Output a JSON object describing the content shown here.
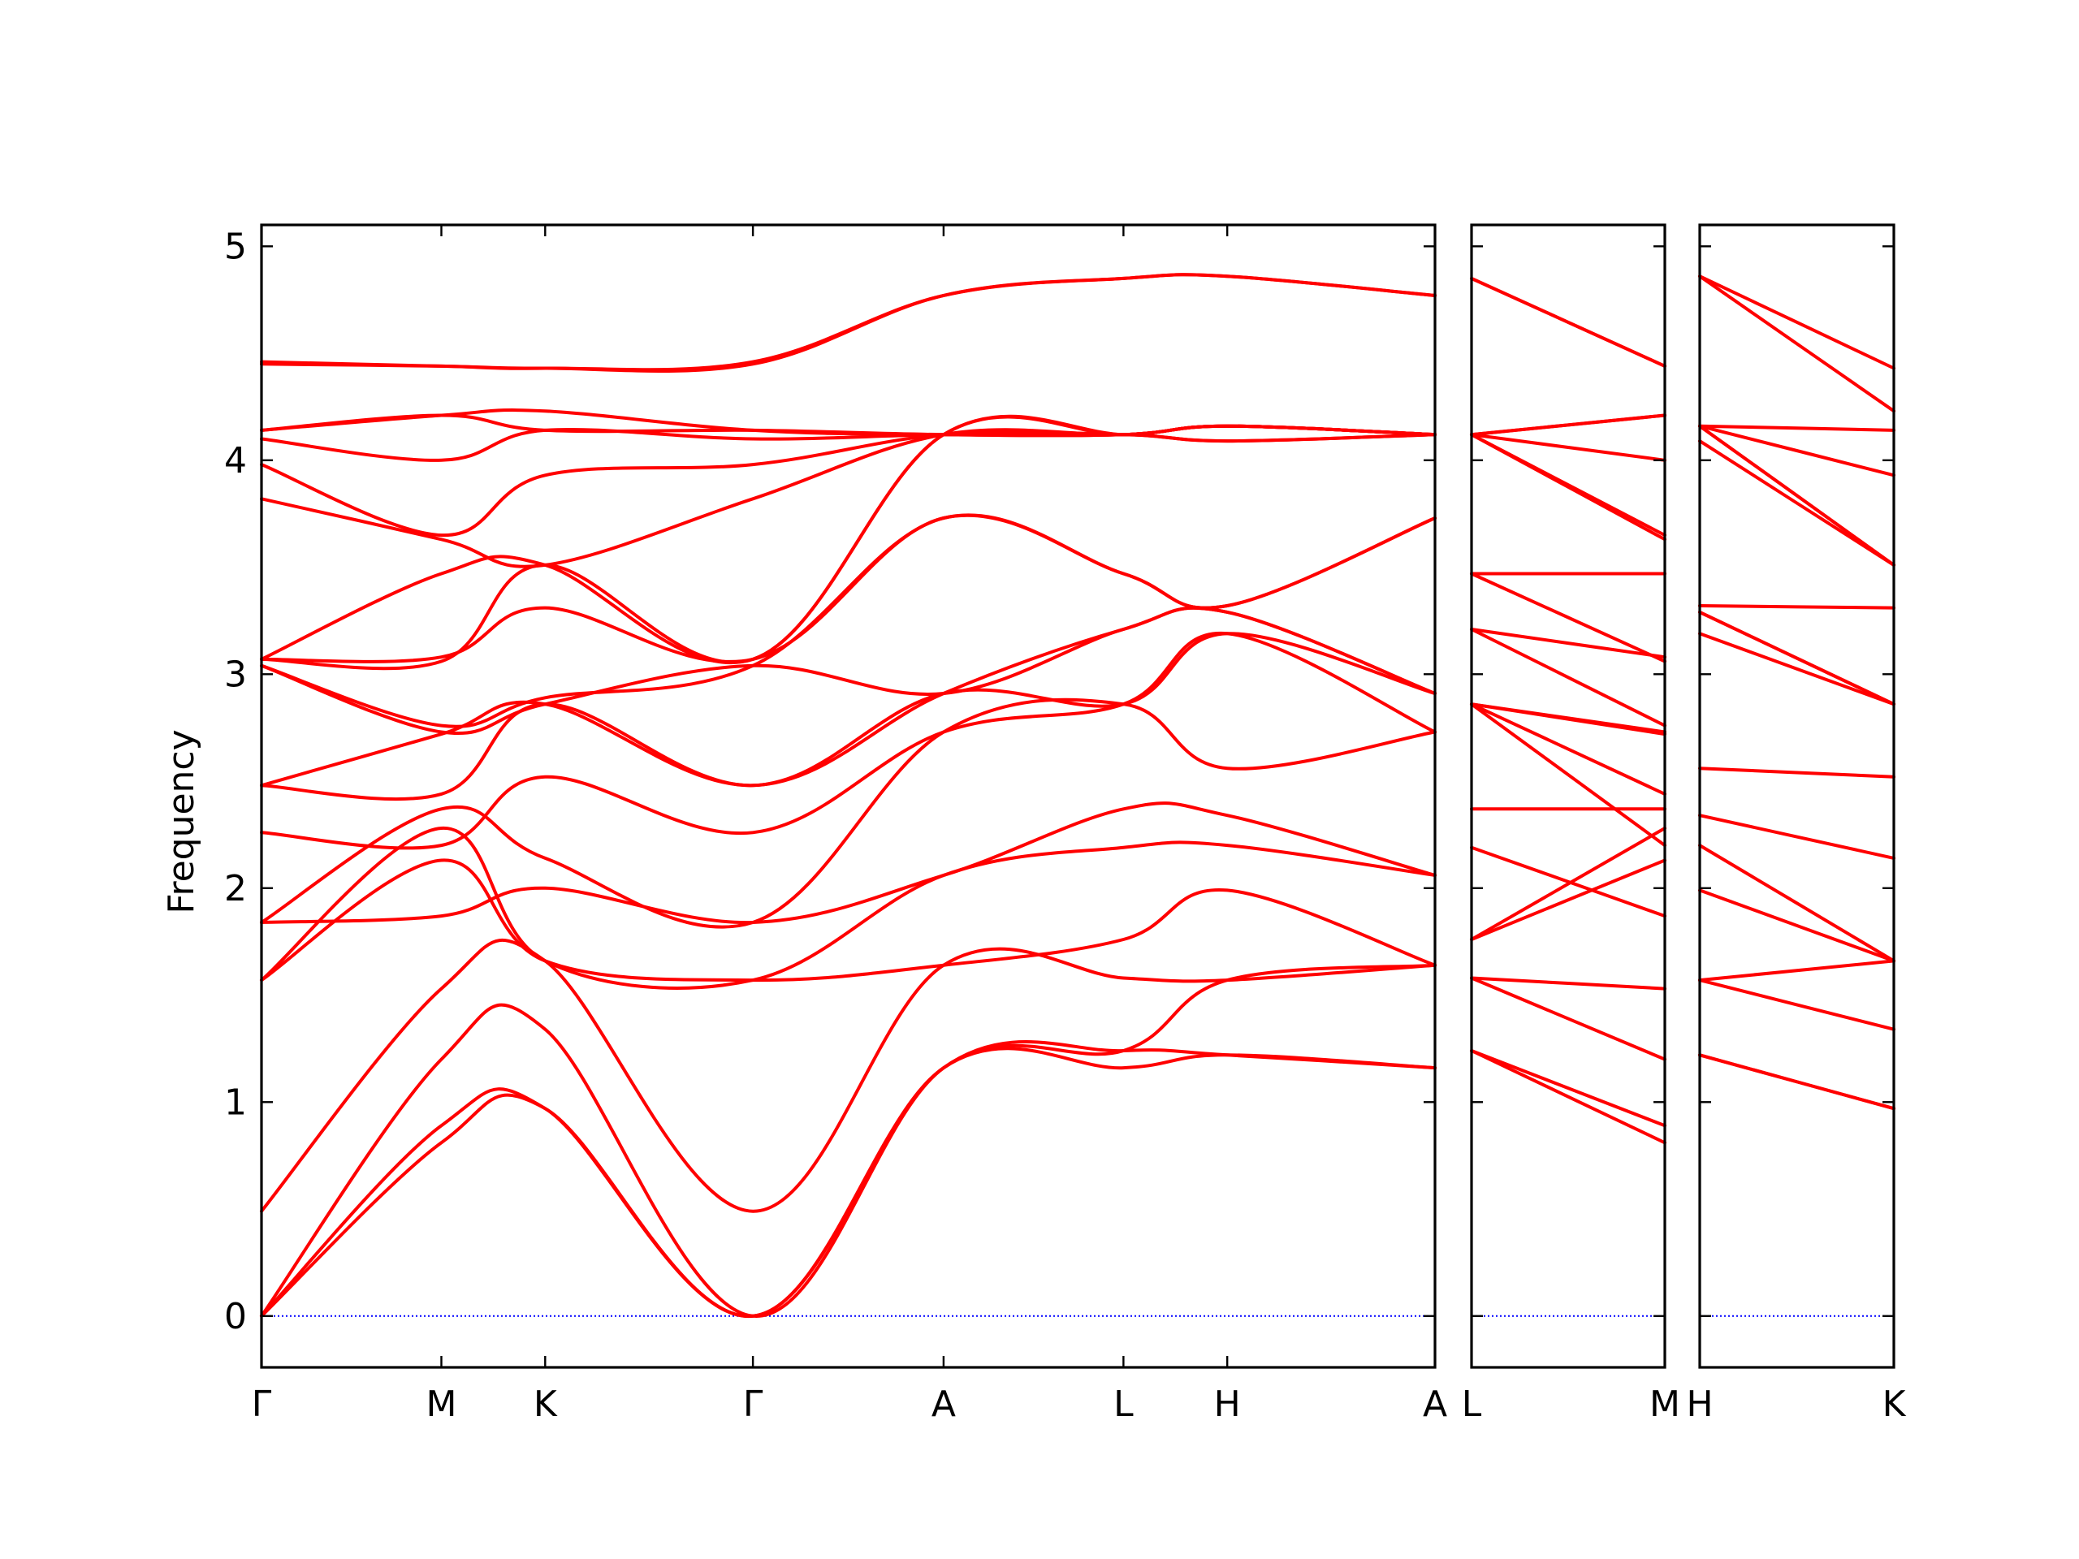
{
  "chart_data": {
    "type": "line",
    "title": "",
    "ylabel": "Frequency",
    "ylim": [
      -0.24,
      5.1
    ],
    "yticks": [
      0,
      1,
      2,
      3,
      4,
      5
    ],
    "grid": false,
    "colors": {
      "bands": "#ff0000",
      "zero_line": "#0000ff",
      "axes": "#000000"
    },
    "panels": [
      {
        "name": "panel-main",
        "path_labels": [
          "Γ",
          "M",
          "K",
          "Γ",
          "A",
          "L",
          "H",
          "A"
        ],
        "segments": [
          {
            "from": "Γ",
            "to": "M",
            "length": 1.0
          },
          {
            "from": "M",
            "to": "K",
            "length": 0.577
          },
          {
            "from": "K",
            "to": "Γ",
            "length": 1.155
          },
          {
            "from": "Γ",
            "to": "A",
            "length": 1.06
          },
          {
            "from": "A",
            "to": "L",
            "length": 1.0
          },
          {
            "from": "L",
            "to": "H",
            "length": 0.577
          },
          {
            "from": "H",
            "to": "A",
            "length": 1.155
          }
        ],
        "bands": [
          [
            0,
            0.81,
            0.97,
            0,
            1.16,
            1.16,
            1.22,
            1.16
          ],
          [
            0,
            0.89,
            0.97,
            0,
            1.16,
            1.24,
            1.22,
            1.16
          ],
          [
            0,
            1.2,
            1.34,
            0,
            1.16,
            1.24,
            1.57,
            1.64
          ],
          [
            0.49,
            1.53,
            1.66,
            0.49,
            1.64,
            1.58,
            1.57,
            1.64
          ],
          [
            1.57,
            2.13,
            1.66,
            1.57,
            1.64,
            1.76,
            1.99,
            1.64
          ],
          [
            1.57,
            2.28,
            1.66,
            1.57,
            2.06,
            2.19,
            2.2,
            2.06
          ],
          [
            1.84,
            1.87,
            2.0,
            1.84,
            2.06,
            2.37,
            2.34,
            2.06
          ],
          [
            1.84,
            2.37,
            2.14,
            1.84,
            2.73,
            2.86,
            2.56,
            2.73
          ],
          [
            2.26,
            2.2,
            2.52,
            2.26,
            2.73,
            2.86,
            3.19,
            2.73
          ],
          [
            2.48,
            2.44,
            2.86,
            2.48,
            2.91,
            2.86,
            3.19,
            2.91
          ],
          [
            2.48,
            2.72,
            2.86,
            2.48,
            2.91,
            3.21,
            3.29,
            2.91
          ],
          [
            3.04,
            2.73,
            2.86,
            3.04,
            2.91,
            3.21,
            3.29,
            2.91
          ],
          [
            3.04,
            2.76,
            2.89,
            3.04,
            3.73,
            3.47,
            3.32,
            3.73
          ],
          [
            3.07,
            3.08,
            3.31,
            3.07,
            3.73,
            3.47,
            3.32,
            3.73
          ],
          [
            3.07,
            3.06,
            3.51,
            3.07,
            4.12,
            4.12,
            4.09,
            4.12
          ],
          [
            3.07,
            3.47,
            3.51,
            3.07,
            4.12,
            4.12,
            4.16,
            4.12
          ],
          [
            3.82,
            3.63,
            3.51,
            3.82,
            4.12,
            4.12,
            4.16,
            4.12
          ],
          [
            3.98,
            3.65,
            3.93,
            3.98,
            4.12,
            4.12,
            4.09,
            4.12
          ],
          [
            4.1,
            4.0,
            4.14,
            4.1,
            4.12,
            4.12,
            4.16,
            4.12
          ],
          [
            4.14,
            4.21,
            4.23,
            4.14,
            4.12,
            4.12,
            4.16,
            4.12
          ],
          [
            4.14,
            4.21,
            4.14,
            4.14,
            4.12,
            4.12,
            4.16,
            4.12
          ],
          [
            4.45,
            4.44,
            4.43,
            4.45,
            4.77,
            4.85,
            4.86,
            4.77
          ],
          [
            4.46,
            4.44,
            4.43,
            4.46,
            4.77,
            4.85,
            4.86,
            4.77
          ]
        ]
      },
      {
        "name": "panel-l-m",
        "path_labels": [
          "L",
          "M"
        ],
        "segments": [
          {
            "from": "L",
            "to": "M",
            "length": 1.0
          }
        ],
        "bands": [
          [
            1.24,
            0.81
          ],
          [
            1.24,
            0.89
          ],
          [
            1.58,
            1.2
          ],
          [
            1.58,
            1.53
          ],
          [
            1.76,
            2.13
          ],
          [
            1.76,
            2.28
          ],
          [
            2.19,
            1.87
          ],
          [
            2.37,
            2.37
          ],
          [
            2.86,
            2.2
          ],
          [
            2.86,
            2.44
          ],
          [
            2.86,
            2.72
          ],
          [
            2.86,
            2.73
          ],
          [
            3.21,
            2.76
          ],
          [
            3.21,
            3.08
          ],
          [
            3.47,
            3.06
          ],
          [
            3.47,
            3.47
          ],
          [
            4.12,
            3.63
          ],
          [
            4.12,
            3.65
          ],
          [
            4.12,
            4.0
          ],
          [
            4.12,
            4.21
          ],
          [
            4.12,
            4.21
          ],
          [
            4.85,
            4.44
          ],
          [
            4.85,
            4.44
          ]
        ]
      },
      {
        "name": "panel-h-k",
        "path_labels": [
          "H",
          "K"
        ],
        "segments": [
          {
            "from": "H",
            "to": "K",
            "length": 1.0
          }
        ],
        "bands": [
          [
            1.22,
            0.97
          ],
          [
            1.22,
            0.97
          ],
          [
            1.57,
            1.34
          ],
          [
            1.57,
            1.66
          ],
          [
            1.99,
            1.66
          ],
          [
            2.2,
            1.66
          ],
          [
            2.34,
            2.14
          ],
          [
            2.56,
            2.52
          ],
          [
            3.19,
            2.86
          ],
          [
            3.29,
            2.86
          ],
          [
            3.29,
            2.86
          ],
          [
            3.32,
            3.31
          ],
          [
            4.09,
            3.51
          ],
          [
            4.16,
            3.51
          ],
          [
            4.16,
            3.51
          ],
          [
            4.16,
            3.93
          ],
          [
            4.16,
            4.14
          ],
          [
            4.86,
            4.23
          ],
          [
            4.86,
            4.43
          ]
        ]
      }
    ]
  }
}
